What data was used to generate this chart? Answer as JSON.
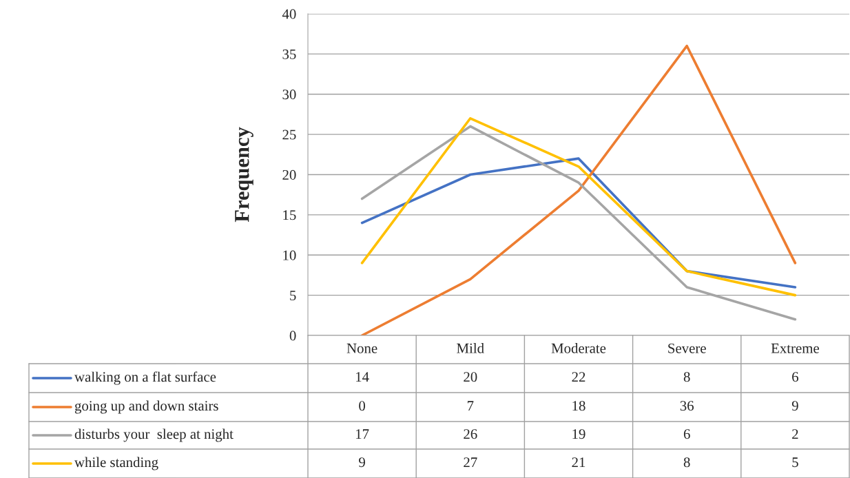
{
  "chart_data": {
    "type": "line",
    "ylabel": "Frequency",
    "categories": [
      "None",
      "Mild",
      "Moderate",
      "Severe",
      "Extreme"
    ],
    "series": [
      {
        "name": "walking on a flat surface",
        "color": "#4472c4",
        "values": [
          14,
          20,
          22,
          8,
          6
        ]
      },
      {
        "name": "going up and down stairs",
        "color": "#ed7d31",
        "values": [
          0,
          7,
          18,
          36,
          9
        ]
      },
      {
        "name": "disturbs your  sleep at night",
        "color": "#a5a5a5",
        "values": [
          17,
          26,
          19,
          6,
          2
        ]
      },
      {
        "name": "while standing",
        "color": "#ffc000",
        "values": [
          9,
          27,
          21,
          8,
          5
        ]
      }
    ],
    "ylim": [
      0,
      40
    ],
    "yticks": [
      0,
      5,
      10,
      15,
      20,
      25,
      30,
      35,
      40
    ],
    "grid": "y",
    "legend": "bottom",
    "data_labels": true,
    "marker": "none",
    "line_style": "solid"
  }
}
